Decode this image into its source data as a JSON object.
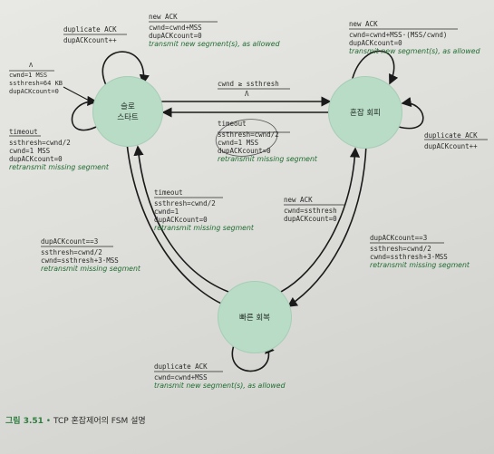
{
  "states": {
    "slow_start": "슬로\n스타트",
    "congestion_avoidance": "혼잡 회피",
    "fast_recovery": "빠른 회복"
  },
  "labels": {
    "ss_dupack": {
      "event": "duplicate ACK",
      "actions": [
        "dupACKcount++"
      ]
    },
    "ss_newack": {
      "event": "new ACK",
      "actions": [
        "cwnd=cwnd+MSS",
        "dupACKcount=0"
      ],
      "italic": "transmit new segment(s), as allowed"
    },
    "ca_newack": {
      "event": "new ACK",
      "actions": [
        "cwnd=cwnd+MSS·(MSS/cwnd)",
        "dupACKcount=0"
      ],
      "italic": "transmit new segment(s), as allowed"
    },
    "init": {
      "lambda": "Λ",
      "actions": [
        "cwnd=1 MSS",
        "ssthresh=64 KB",
        "dupACKcount=0"
      ]
    },
    "ss_timeout": {
      "event": "timeout",
      "actions": [
        "ssthresh=cwnd/2",
        "cwnd=1 MSS",
        "dupACKcount=0"
      ],
      "italic": "retransmit missing segment"
    },
    "ss_to_ca": {
      "event": "cwnd ≥ ssthresh",
      "actions": [
        "Λ"
      ]
    },
    "ca_timeout": {
      "event": "timeout",
      "actions": [
        "ssthresh=cwnd/2",
        "cwnd=1 MSS",
        "dupACKcount=0"
      ],
      "italic": "retransmit missing segment"
    },
    "ca_dupack": {
      "event": "duplicate ACK",
      "actions": [
        "dupACKcount++"
      ]
    },
    "fr_timeout": {
      "event": "timeout",
      "actions": [
        "ssthresh=cwnd/2",
        "cwnd=1",
        "dupACKcount=0"
      ],
      "italic": "retransmit missing segment"
    },
    "fr_newack": {
      "event": "new ACK",
      "actions": [
        "cwnd=ssthresh",
        "dupACKcount=0"
      ]
    },
    "ss_to_fr": {
      "event": "dupACKcount==3",
      "actions": [
        "ssthresh=cwnd/2",
        "cwnd=ssthresh+3·MSS"
      ],
      "italic": "retransmit missing segment"
    },
    "ca_to_fr": {
      "event": "dupACKcount==3",
      "actions": [
        "ssthresh=cwnd/2",
        "cwnd=ssthresh+3·MSS"
      ],
      "italic": "retransmit missing segment"
    },
    "fr_dupack": {
      "event": "duplicate ACK",
      "actions": [
        "cwnd=cwnd+MSS"
      ],
      "italic": "transmit new segment(s), as allowed"
    }
  },
  "caption": {
    "number": "그림 3.51",
    "bullet": "•",
    "text": "TCP 혼잡제어의 FSM 설명"
  },
  "colors": {
    "state_fill": "#b9dcc6",
    "italic_text": "#1f6d30",
    "arrow": "#1a1a1a"
  }
}
